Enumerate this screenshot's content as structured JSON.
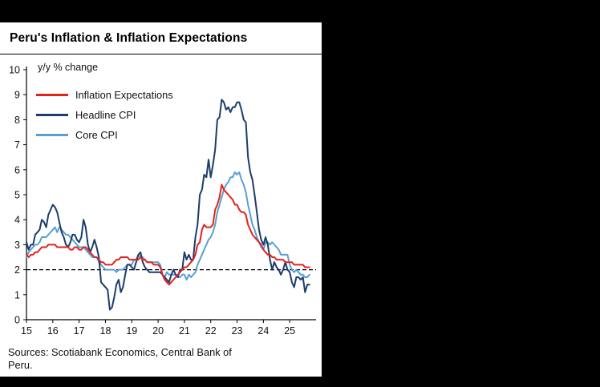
{
  "chart": {
    "title": "Peru's Inflation & Inflation Expectations",
    "axis_note": "y/y % change",
    "sources": "Sources: Scotiabank Economics, Central Bank of Peru."
  },
  "chart_data": {
    "type": "line",
    "title": "Peru's Inflation & Inflation Expectations",
    "xlabel": "",
    "ylabel": "y/y % change",
    "ylim": [
      0,
      10
    ],
    "yticks": [
      0,
      1,
      2,
      3,
      4,
      5,
      6,
      7,
      8,
      9,
      10
    ],
    "x_tick_labels": [
      "15",
      "16",
      "17",
      "18",
      "19",
      "20",
      "21",
      "22",
      "23",
      "24",
      "25"
    ],
    "x_start_year": 2015,
    "frequency": "monthly",
    "grid": false,
    "legend_position": "inside top-left",
    "reference_line": {
      "y": 2,
      "style": "dashed",
      "color": "#000000"
    },
    "series": [
      {
        "name": "Inflation Expectations",
        "color": "#e2231a",
        "values": [
          2.6,
          2.5,
          2.6,
          2.6,
          2.7,
          2.7,
          2.8,
          2.9,
          2.9,
          2.9,
          3.0,
          3.0,
          3.0,
          3.0,
          2.9,
          2.9,
          2.9,
          2.9,
          2.9,
          2.9,
          2.8,
          2.8,
          2.9,
          2.9,
          2.8,
          2.8,
          2.9,
          2.9,
          2.8,
          2.7,
          2.6,
          2.5,
          2.5,
          2.4,
          2.3,
          2.3,
          2.2,
          2.2,
          2.2,
          2.2,
          2.3,
          2.4,
          2.4,
          2.5,
          2.5,
          2.5,
          2.5,
          2.4,
          2.4,
          2.4,
          2.4,
          2.4,
          2.5,
          2.4,
          2.4,
          2.3,
          2.3,
          2.3,
          2.2,
          2.2,
          2.2,
          2.1,
          1.8,
          1.6,
          1.5,
          1.4,
          1.5,
          1.6,
          1.7,
          1.8,
          1.9,
          2.0,
          2.1,
          2.1,
          2.2,
          2.3,
          2.4,
          2.6,
          3.0,
          3.1,
          3.6,
          3.8,
          3.7,
          3.7,
          3.7,
          3.8,
          4.4,
          4.6,
          4.9,
          5.4,
          5.2,
          5.1,
          5.0,
          4.9,
          4.8,
          4.6,
          4.6,
          4.4,
          4.3,
          4.3,
          4.2,
          3.8,
          3.6,
          3.4,
          3.3,
          3.2,
          3.1,
          3.0,
          2.8,
          2.7,
          2.6,
          2.6,
          2.5,
          2.5,
          2.4,
          2.4,
          2.4,
          2.4,
          2.3,
          2.3,
          2.3,
          2.3,
          2.2,
          2.2,
          2.2,
          2.2,
          2.2,
          2.1,
          2.1,
          2.1
        ]
      },
      {
        "name": "Headline CPI",
        "color": "#1d3c6e",
        "values": [
          3.1,
          2.8,
          3.0,
          3.0,
          3.4,
          3.5,
          3.6,
          4.0,
          3.9,
          3.7,
          4.2,
          4.4,
          4.6,
          4.5,
          4.3,
          3.9,
          3.5,
          3.3,
          3.0,
          2.9,
          3.1,
          3.4,
          3.4,
          3.2,
          3.1,
          3.3,
          4.0,
          3.7,
          3.0,
          2.7,
          2.9,
          3.2,
          2.9,
          2.5,
          1.5,
          1.4,
          1.3,
          1.2,
          0.4,
          0.5,
          0.9,
          1.4,
          1.6,
          1.1,
          1.3,
          1.8,
          2.2,
          2.2,
          2.1,
          2.0,
          2.3,
          2.6,
          2.7,
          2.3,
          2.1,
          2.0,
          1.9,
          1.9,
          1.9,
          1.9,
          1.9,
          1.9,
          1.8,
          1.7,
          1.6,
          1.5,
          1.8,
          2.0,
          1.8,
          1.7,
          2.0,
          2.0,
          2.7,
          2.4,
          2.6,
          2.4,
          2.4,
          3.3,
          3.8,
          5.0,
          5.2,
          5.8,
          5.7,
          6.4,
          5.7,
          6.2,
          6.8,
          8.0,
          8.1,
          8.8,
          8.7,
          8.4,
          8.5,
          8.3,
          8.5,
          8.5,
          8.7,
          8.7,
          8.4,
          8.0,
          7.9,
          6.5,
          5.9,
          5.6,
          5.0,
          4.3,
          3.6,
          3.2,
          3.0,
          3.3,
          3.0,
          2.4,
          2.0,
          2.3,
          2.1,
          2.0,
          1.8,
          2.0,
          2.3,
          2.0,
          1.9,
          1.5,
          1.3,
          1.7,
          1.7,
          1.6,
          1.7,
          1.1,
          1.4,
          1.4
        ]
      },
      {
        "name": "Core CPI",
        "color": "#58a0d2",
        "values": [
          2.5,
          2.7,
          2.8,
          2.9,
          3.0,
          3.0,
          3.1,
          3.3,
          3.3,
          3.3,
          3.4,
          3.5,
          3.6,
          3.7,
          3.5,
          3.7,
          3.6,
          3.5,
          3.4,
          3.4,
          3.3,
          3.2,
          3.1,
          3.0,
          2.9,
          2.9,
          2.9,
          2.8,
          2.7,
          2.6,
          2.5,
          2.5,
          2.5,
          2.3,
          2.2,
          2.1,
          2.0,
          2.0,
          2.0,
          2.0,
          2.0,
          1.9,
          2.0,
          2.0,
          2.0,
          2.1,
          2.2,
          2.2,
          2.2,
          2.4,
          2.4,
          2.6,
          2.5,
          2.5,
          2.4,
          2.3,
          2.3,
          2.3,
          2.3,
          2.3,
          2.3,
          2.2,
          1.8,
          1.7,
          1.9,
          1.8,
          1.8,
          1.8,
          1.8,
          1.7,
          1.7,
          1.8,
          1.8,
          1.6,
          1.8,
          1.7,
          1.8,
          1.9,
          2.2,
          2.4,
          2.6,
          2.8,
          3.0,
          3.2,
          3.3,
          3.5,
          3.8,
          4.3,
          4.6,
          4.9,
          5.2,
          5.4,
          5.5,
          5.7,
          5.7,
          5.9,
          5.8,
          5.9,
          5.6,
          5.4,
          5.1,
          4.6,
          4.2,
          3.8,
          3.6,
          3.3,
          3.1,
          2.9,
          2.8,
          3.1,
          3.1,
          3.0,
          3.1,
          3.0,
          2.9,
          2.8,
          2.6,
          2.6,
          2.6,
          2.6,
          2.2,
          2.0,
          1.9,
          2.0,
          1.9,
          1.8,
          1.8,
          1.7,
          1.7,
          1.8
        ]
      }
    ]
  }
}
